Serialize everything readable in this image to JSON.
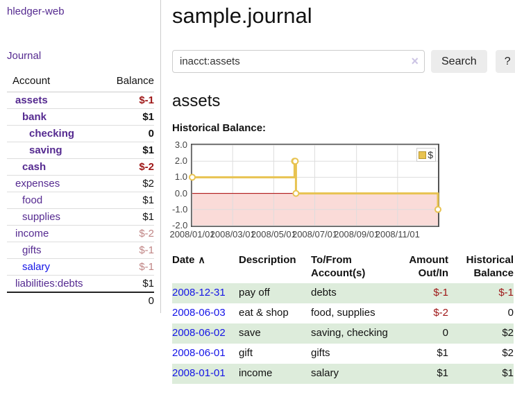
{
  "colors": {
    "link_purple": "#552a90",
    "link_blue": "#1414e6",
    "negative_strong": "#9e1616",
    "negative_muted": "#c08585",
    "row_shaded_green": "#ddecdb",
    "chart_line_gold": "#e8c351",
    "chart_marker_fill": "#ffffff",
    "chart_negative_area_pink": "#fadbd8",
    "chart_zero_line_red": "#aa0000",
    "chart_border_gray": "#545454",
    "chart_grid_gray": "#dddddd"
  },
  "sidebar": {
    "app_title": "hledger-web",
    "journal_link": "Journal",
    "accounts": {
      "col_account": "Account",
      "col_balance": "Balance",
      "rows": [
        {
          "name": "assets",
          "balance": "$-1",
          "depth": 1,
          "bold": true,
          "balance_style": "negative-strong"
        },
        {
          "name": "bank",
          "balance": "$1",
          "depth": 2,
          "bold": true,
          "balance_style": "normal"
        },
        {
          "name": "checking",
          "balance": "0",
          "depth": 3,
          "bold": true,
          "balance_style": "normal"
        },
        {
          "name": "saving",
          "balance": "$1",
          "depth": 3,
          "bold": true,
          "balance_style": "normal"
        },
        {
          "name": "cash",
          "balance": "$-2",
          "depth": 2,
          "bold": true,
          "balance_style": "negative-strong"
        },
        {
          "name": "expenses",
          "balance": "$2",
          "depth": 1,
          "bold": false,
          "balance_style": "normal"
        },
        {
          "name": "food",
          "balance": "$1",
          "depth": 2,
          "bold": false,
          "balance_style": "normal"
        },
        {
          "name": "supplies",
          "balance": "$1",
          "depth": 2,
          "bold": false,
          "balance_style": "normal"
        },
        {
          "name": "income",
          "balance": "$-2",
          "depth": 1,
          "bold": false,
          "balance_style": "negative-muted"
        },
        {
          "name": "gifts",
          "balance": "$-1",
          "depth": 2,
          "bold": false,
          "balance_style": "negative-muted"
        },
        {
          "name": "salary",
          "balance": "$-1",
          "depth": 2,
          "bold": false,
          "balance_style": "negative-muted",
          "link_style": "blue"
        },
        {
          "name": "liabilities:debts",
          "balance": "$1",
          "depth": 1,
          "bold": false,
          "balance_style": "normal"
        }
      ],
      "total": "0"
    }
  },
  "main": {
    "title": "sample.journal",
    "search": {
      "value": "inacct:assets",
      "clear_icon": "×",
      "search_button": "Search",
      "help_button": "?"
    },
    "account_heading": "assets",
    "chart_label": "Historical Balance:",
    "register": {
      "columns": {
        "date": "Date",
        "sort_icon": "∧",
        "description": "Description",
        "accounts": "To/From Account(s)",
        "amount": "Amount Out/In",
        "balance": "Historical Balance"
      },
      "rows": [
        {
          "date": "2008-12-31",
          "description": "pay off",
          "accounts": "debts",
          "amount": "$-1",
          "amount_style": "negative-strong",
          "balance": "$-1",
          "balance_style": "negative-strong",
          "shaded": true
        },
        {
          "date": "2008-06-03",
          "description": "eat & shop",
          "accounts": "food, supplies",
          "amount": "$-2",
          "amount_style": "negative-strong",
          "balance": "0",
          "balance_style": "normal",
          "shaded": false
        },
        {
          "date": "2008-06-02",
          "description": "save",
          "accounts": "saving, checking",
          "amount": "0",
          "amount_style": "normal",
          "balance": "$2",
          "balance_style": "normal",
          "shaded": true
        },
        {
          "date": "2008-06-01",
          "description": "gift",
          "accounts": "gifts",
          "amount": "$1",
          "amount_style": "normal",
          "balance": "$2",
          "balance_style": "normal",
          "shaded": false
        },
        {
          "date": "2008-01-01",
          "description": "income",
          "accounts": "salary",
          "amount": "$1",
          "amount_style": "normal",
          "balance": "$1",
          "balance_style": "normal",
          "shaded": true
        }
      ]
    }
  },
  "chart_data": {
    "type": "line",
    "step": true,
    "title": "Historical Balance:",
    "legend": {
      "label": "$",
      "position": "top-right"
    },
    "ylim": [
      -2,
      3
    ],
    "yticks": [
      3.0,
      2.0,
      1.0,
      0.0,
      -1.0,
      -2.0
    ],
    "xticks": [
      "2008/01/01",
      "2008/03/01",
      "2008/05/01",
      "2008/07/01",
      "2008/09/01",
      "2008/11/01"
    ],
    "x_range": [
      "2008-01-01",
      "2008-12-31"
    ],
    "grid": true,
    "negative_region_shaded": true,
    "series": [
      {
        "name": "$",
        "points": [
          [
            "2008-01-01",
            1
          ],
          [
            "2008-06-01",
            2
          ],
          [
            "2008-06-02",
            2
          ],
          [
            "2008-06-03",
            0
          ],
          [
            "2008-12-31",
            -1
          ]
        ]
      }
    ]
  }
}
